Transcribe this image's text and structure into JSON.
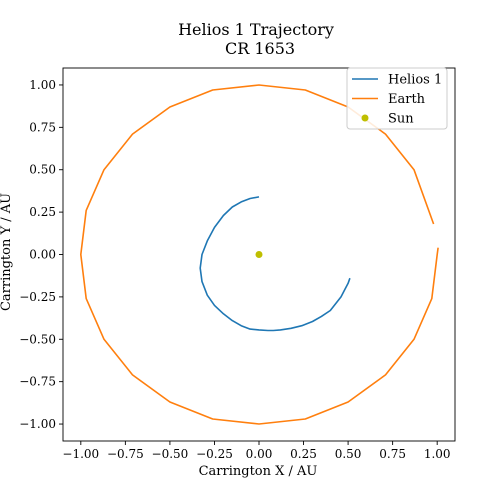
{
  "chart_data": {
    "type": "line",
    "title": "Helios 1 Trajectory",
    "subtitle": "CR 1653",
    "xlabel": "Carrington X / AU",
    "ylabel": "Carrington Y / AU",
    "xlim": [
      -1.1,
      1.1
    ],
    "ylim": [
      -1.1,
      1.1
    ],
    "xticks": [
      -1.0,
      -0.75,
      -0.5,
      -0.25,
      0.0,
      0.25,
      0.5,
      0.75,
      1.0
    ],
    "yticks": [
      -1.0,
      -0.75,
      -0.5,
      -0.25,
      0.0,
      0.25,
      0.5,
      0.75,
      1.0
    ],
    "xtick_labels": [
      "−1.00",
      "−0.75",
      "−0.50",
      "−0.25",
      "0.00",
      "0.25",
      "0.50",
      "0.75",
      "1.00"
    ],
    "ytick_labels": [
      "−1.00",
      "−0.75",
      "−0.50",
      "−0.25",
      "0.00",
      "0.25",
      "0.50",
      "0.75",
      "1.00"
    ],
    "grid": false,
    "legend_position": "top-right",
    "series": [
      {
        "name": "Helios 1",
        "color": "#1f77b4",
        "x": [
          0.0,
          -0.05,
          -0.1,
          -0.15,
          -0.2,
          -0.25,
          -0.29,
          -0.32,
          -0.33,
          -0.32,
          -0.29,
          -0.25,
          -0.2,
          -0.15,
          -0.1,
          -0.05,
          0.0,
          0.05,
          0.08,
          0.12,
          0.18,
          0.24,
          0.3,
          0.35,
          0.4,
          0.43,
          0.46,
          0.48,
          0.5,
          0.51
        ],
        "y": [
          0.34,
          0.33,
          0.31,
          0.28,
          0.23,
          0.16,
          0.08,
          0.0,
          -0.08,
          -0.16,
          -0.24,
          -0.3,
          -0.35,
          -0.39,
          -0.42,
          -0.44,
          -0.445,
          -0.448,
          -0.448,
          -0.445,
          -0.435,
          -0.42,
          -0.395,
          -0.365,
          -0.33,
          -0.29,
          -0.25,
          -0.21,
          -0.17,
          -0.14
        ]
      },
      {
        "name": "Earth",
        "color": "#ff7f0e",
        "x": [
          0.98,
          0.87,
          0.71,
          0.5,
          0.26,
          0.0,
          -0.26,
          -0.5,
          -0.71,
          -0.87,
          -0.97,
          -1.0,
          -0.97,
          -0.87,
          -0.71,
          -0.5,
          -0.26,
          0.0,
          0.26,
          0.5,
          0.71,
          0.87,
          0.97,
          1.0,
          1.005
        ],
        "y": [
          0.18,
          0.5,
          0.71,
          0.87,
          0.97,
          1.0,
          0.97,
          0.87,
          0.71,
          0.5,
          0.26,
          0.0,
          -0.26,
          -0.5,
          -0.71,
          -0.87,
          -0.97,
          -1.0,
          -0.97,
          -0.87,
          -0.71,
          -0.5,
          -0.26,
          0.0,
          0.04
        ]
      },
      {
        "name": "Sun",
        "color": "#bfbf00",
        "type": "scatter",
        "x": [
          0.0
        ],
        "y": [
          0.0
        ]
      }
    ]
  }
}
